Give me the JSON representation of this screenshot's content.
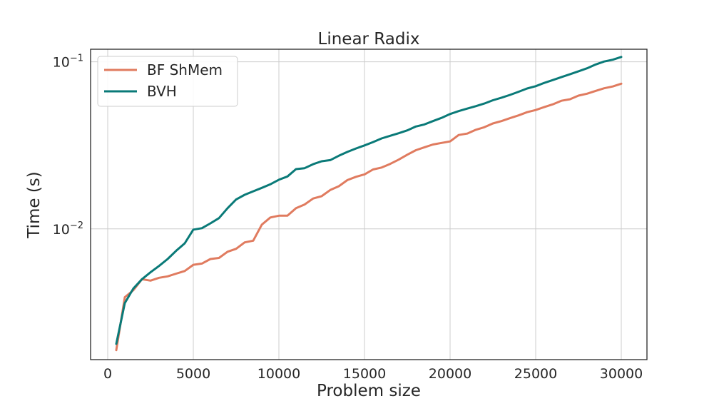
{
  "chart_data": {
    "type": "line",
    "title": "Linear Radix",
    "xlabel": "Problem size",
    "ylabel": "Time (s)",
    "xlim": [
      -1000,
      31500
    ],
    "ylim": [
      0.00165,
      0.119
    ],
    "yscale": "log",
    "grid": true,
    "legend_position": "top-left",
    "x_ticks": [
      0,
      5000,
      10000,
      15000,
      20000,
      25000,
      30000
    ],
    "x_tick_labels": [
      "0",
      "5000",
      "10000",
      "15000",
      "20000",
      "25000",
      "30000"
    ],
    "y_ticks": [
      0.01,
      0.1
    ],
    "y_tick_labels": [
      {
        "base": "10",
        "exp": "−2"
      },
      {
        "base": "10",
        "exp": "−1"
      }
    ],
    "series": [
      {
        "name": "BF ShMem",
        "color": "#e07b5f",
        "points": [
          [
            500,
            0.00188
          ],
          [
            1000,
            0.0039
          ],
          [
            1500,
            0.0043
          ],
          [
            2000,
            0.005
          ],
          [
            2500,
            0.0049
          ],
          [
            3000,
            0.0051
          ],
          [
            3500,
            0.0052
          ],
          [
            4000,
            0.0054
          ],
          [
            4500,
            0.0056
          ],
          [
            5000,
            0.0061
          ],
          [
            5500,
            0.0062
          ],
          [
            6000,
            0.0066
          ],
          [
            6500,
            0.0067
          ],
          [
            7000,
            0.0073
          ],
          [
            7500,
            0.0076
          ],
          [
            8000,
            0.0083
          ],
          [
            8500,
            0.0085
          ],
          [
            9000,
            0.0106
          ],
          [
            9500,
            0.0117
          ],
          [
            10000,
            0.012
          ],
          [
            10500,
            0.012
          ],
          [
            11000,
            0.0133
          ],
          [
            11500,
            0.014
          ],
          [
            12000,
            0.0152
          ],
          [
            12500,
            0.0157
          ],
          [
            13000,
            0.0171
          ],
          [
            13500,
            0.018
          ],
          [
            14000,
            0.0196
          ],
          [
            14500,
            0.0205
          ],
          [
            15000,
            0.0212
          ],
          [
            15500,
            0.0227
          ],
          [
            16000,
            0.0233
          ],
          [
            16500,
            0.0245
          ],
          [
            17000,
            0.026
          ],
          [
            17500,
            0.0278
          ],
          [
            18000,
            0.0296
          ],
          [
            18500,
            0.0308
          ],
          [
            19000,
            0.032
          ],
          [
            19500,
            0.0327
          ],
          [
            20000,
            0.0334
          ],
          [
            20500,
            0.0365
          ],
          [
            21000,
            0.0372
          ],
          [
            21500,
            0.0392
          ],
          [
            22000,
            0.0406
          ],
          [
            22500,
            0.0428
          ],
          [
            23000,
            0.0442
          ],
          [
            23500,
            0.046
          ],
          [
            24000,
            0.0478
          ],
          [
            24500,
            0.05
          ],
          [
            25000,
            0.0515
          ],
          [
            25500,
            0.0536
          ],
          [
            26000,
            0.0557
          ],
          [
            26500,
            0.0585
          ],
          [
            27000,
            0.0597
          ],
          [
            27500,
            0.0628
          ],
          [
            28000,
            0.0645
          ],
          [
            28500,
            0.067
          ],
          [
            29000,
            0.0695
          ],
          [
            29500,
            0.0712
          ],
          [
            30000,
            0.074
          ]
        ]
      },
      {
        "name": "BVH",
        "color": "#0a7a78",
        "points": [
          [
            500,
            0.00205
          ],
          [
            1000,
            0.0036
          ],
          [
            1500,
            0.0044
          ],
          [
            2000,
            0.005
          ],
          [
            2500,
            0.0055
          ],
          [
            3000,
            0.006
          ],
          [
            3500,
            0.0066
          ],
          [
            4000,
            0.0074
          ],
          [
            4500,
            0.0082
          ],
          [
            5000,
            0.0099
          ],
          [
            5500,
            0.0101
          ],
          [
            6000,
            0.0108
          ],
          [
            6500,
            0.0116
          ],
          [
            7000,
            0.0133
          ],
          [
            7500,
            0.015
          ],
          [
            8000,
            0.016
          ],
          [
            8500,
            0.0168
          ],
          [
            9000,
            0.0176
          ],
          [
            9500,
            0.0185
          ],
          [
            10000,
            0.0197
          ],
          [
            10500,
            0.0206
          ],
          [
            11000,
            0.0228
          ],
          [
            11500,
            0.0231
          ],
          [
            12000,
            0.0244
          ],
          [
            12500,
            0.0254
          ],
          [
            13000,
            0.0258
          ],
          [
            13500,
            0.0274
          ],
          [
            14000,
            0.0289
          ],
          [
            14500,
            0.0303
          ],
          [
            15000,
            0.0316
          ],
          [
            15500,
            0.0331
          ],
          [
            16000,
            0.0348
          ],
          [
            16500,
            0.0361
          ],
          [
            17000,
            0.0374
          ],
          [
            17500,
            0.0389
          ],
          [
            18000,
            0.041
          ],
          [
            18500,
            0.0422
          ],
          [
            19000,
            0.0442
          ],
          [
            19500,
            0.0462
          ],
          [
            20000,
            0.0487
          ],
          [
            20500,
            0.0507
          ],
          [
            21000,
            0.0525
          ],
          [
            21500,
            0.0543
          ],
          [
            22000,
            0.0563
          ],
          [
            22500,
            0.0589
          ],
          [
            23000,
            0.061
          ],
          [
            23500,
            0.0634
          ],
          [
            24000,
            0.0662
          ],
          [
            24500,
            0.0693
          ],
          [
            25000,
            0.0715
          ],
          [
            25500,
            0.0748
          ],
          [
            26000,
            0.0778
          ],
          [
            26500,
            0.081
          ],
          [
            27000,
            0.0843
          ],
          [
            27500,
            0.0878
          ],
          [
            28000,
            0.0915
          ],
          [
            28500,
            0.0964
          ],
          [
            29000,
            0.1005
          ],
          [
            29500,
            0.103
          ],
          [
            30000,
            0.107
          ]
        ]
      }
    ]
  }
}
